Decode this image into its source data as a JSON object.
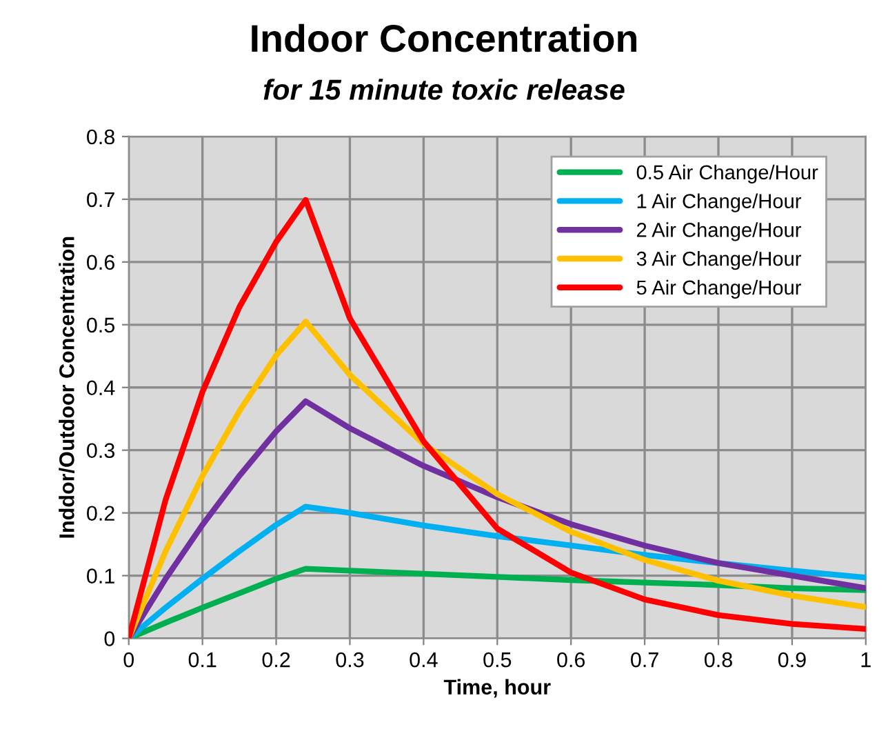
{
  "chart_data": {
    "type": "line",
    "title": "Indoor Concentration",
    "subtitle": "for 15 minute toxic release",
    "xlabel": "Time, hour",
    "ylabel": "Inddor/Outdoor Concentration",
    "x": [
      0,
      0.05,
      0.1,
      0.15,
      0.2,
      0.24,
      0.3,
      0.4,
      0.5,
      0.6,
      0.7,
      0.8,
      0.9,
      1.0
    ],
    "series": [
      {
        "name": "0.5 Air Change/Hour",
        "color": "#00b050",
        "values": [
          0,
          0.025,
          0.049,
          0.072,
          0.095,
          0.111,
          0.108,
          0.103,
          0.098,
          0.093,
          0.089,
          0.085,
          0.08,
          0.077
        ]
      },
      {
        "name": "1 Air Change/Hour",
        "color": "#00b0f0",
        "values": [
          0,
          0.049,
          0.095,
          0.139,
          0.181,
          0.21,
          0.2,
          0.18,
          0.163,
          0.148,
          0.133,
          0.12,
          0.108,
          0.097
        ]
      },
      {
        "name": "2 Air Change/Hour",
        "color": "#7030a0",
        "values": [
          0,
          0.095,
          0.181,
          0.259,
          0.33,
          0.378,
          0.335,
          0.275,
          0.225,
          0.182,
          0.148,
          0.12,
          0.1,
          0.08
        ]
      },
      {
        "name": "3 Air Change/Hour",
        "color": "#ffc000",
        "values": [
          0,
          0.139,
          0.259,
          0.362,
          0.451,
          0.505,
          0.42,
          0.31,
          0.23,
          0.17,
          0.125,
          0.092,
          0.068,
          0.05
        ]
      },
      {
        "name": "5 Air Change/Hour",
        "color": "#ff0000",
        "values": [
          0,
          0.221,
          0.393,
          0.528,
          0.632,
          0.699,
          0.51,
          0.314,
          0.175,
          0.105,
          0.062,
          0.037,
          0.023,
          0.015
        ]
      }
    ],
    "xlim": [
      0,
      1
    ],
    "ylim": [
      0,
      0.8
    ],
    "xticks": [
      0,
      0.1,
      0.2,
      0.3,
      0.4,
      0.5,
      0.6,
      0.7,
      0.8,
      0.9,
      1
    ],
    "yticks": [
      0,
      0.1,
      0.2,
      0.3,
      0.4,
      0.5,
      0.6,
      0.7,
      0.8
    ],
    "grid": true,
    "legend": "top right",
    "marker": "none",
    "line_style": "solid"
  }
}
